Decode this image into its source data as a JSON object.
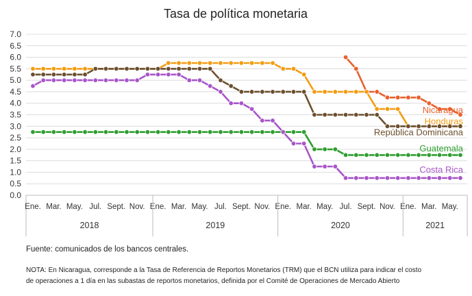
{
  "chart_data": {
    "type": "line",
    "title": "Tasa de política monetaria",
    "xlabel": "",
    "ylabel": "",
    "ylim": [
      0,
      7
    ],
    "y_ticks": [
      "0.0",
      "0.5",
      "1.0",
      "1.5",
      "2.0",
      "2.5",
      "3.0",
      "3.5",
      "4.0",
      "4.5",
      "5.0",
      "5.5",
      "6.0",
      "6.5",
      "7.0"
    ],
    "grid": true,
    "legend": "direct labels at line ends",
    "x_tick_labels": [
      "Ene.",
      "Mar.",
      "May.",
      "Jul.",
      "Sept.",
      "Nov.",
      "Ene.",
      "Mar.",
      "May.",
      "Jul.",
      "Sept.",
      "Nov.",
      "Ene.",
      "Mar.",
      "May.",
      "Jul.",
      "Sept.",
      "Nov.",
      "Ene.",
      "Mar.",
      "May."
    ],
    "x_tick_months": [
      0,
      2,
      4,
      6,
      8,
      10,
      12,
      14,
      16,
      18,
      20,
      22,
      24,
      26,
      28,
      30,
      32,
      34,
      36,
      38,
      40
    ],
    "years": [
      {
        "label": "2018",
        "start": 0,
        "end": 12
      },
      {
        "label": "2019",
        "start": 12,
        "end": 24
      },
      {
        "label": "2020",
        "start": 24,
        "end": 36
      },
      {
        "label": "2021",
        "start": 36,
        "end": 41
      }
    ],
    "x_unit": "months since Jan 2018",
    "series": [
      {
        "name": "Nicaragua",
        "color": "#E8602C",
        "x": [
          30,
          31,
          32,
          33,
          34,
          35,
          36,
          37,
          38,
          39,
          40,
          41
        ],
        "values": [
          6.0,
          5.5,
          4.5,
          4.5,
          4.25,
          4.25,
          4.25,
          4.25,
          4.0,
          3.75,
          3.75,
          3.5
        ]
      },
      {
        "name": "Honduras",
        "color": "#F39C12",
        "x": [
          0,
          1,
          2,
          3,
          4,
          5,
          6,
          7,
          8,
          9,
          10,
          11,
          12,
          13,
          14,
          15,
          16,
          17,
          18,
          19,
          20,
          21,
          22,
          23,
          24,
          25,
          26,
          27,
          28,
          29,
          30,
          31,
          32,
          33,
          34,
          35,
          36,
          37,
          38,
          39,
          40,
          41
        ],
        "values": [
          5.5,
          5.5,
          5.5,
          5.5,
          5.5,
          5.5,
          5.5,
          5.5,
          5.5,
          5.5,
          5.5,
          5.5,
          5.5,
          5.75,
          5.75,
          5.75,
          5.75,
          5.75,
          5.75,
          5.75,
          5.75,
          5.75,
          5.75,
          5.75,
          5.5,
          5.5,
          5.25,
          4.5,
          4.5,
          4.5,
          4.5,
          4.5,
          4.5,
          3.75,
          3.75,
          3.75,
          3.0,
          3.0,
          3.0,
          3.0,
          3.0,
          3.0
        ]
      },
      {
        "name": "República Dominicana",
        "color": "#6B4F2E",
        "x": [
          0,
          1,
          2,
          3,
          4,
          5,
          6,
          7,
          8,
          9,
          10,
          11,
          12,
          13,
          14,
          15,
          16,
          17,
          18,
          19,
          20,
          21,
          22,
          23,
          24,
          25,
          26,
          27,
          28,
          29,
          30,
          31,
          32,
          33,
          34,
          35,
          36,
          37,
          38,
          39,
          40,
          41
        ],
        "values": [
          5.25,
          5.25,
          5.25,
          5.25,
          5.25,
          5.25,
          5.5,
          5.5,
          5.5,
          5.5,
          5.5,
          5.5,
          5.5,
          5.5,
          5.5,
          5.5,
          5.5,
          5.5,
          5.0,
          4.75,
          4.5,
          4.5,
          4.5,
          4.5,
          4.5,
          4.5,
          4.5,
          3.5,
          3.5,
          3.5,
          3.5,
          3.5,
          3.5,
          3.5,
          3.0,
          3.0,
          3.0,
          3.0,
          3.0,
          3.0,
          3.0,
          3.0
        ]
      },
      {
        "name": "Guatemala",
        "color": "#2E9E2E",
        "x": [
          0,
          1,
          2,
          3,
          4,
          5,
          6,
          7,
          8,
          9,
          10,
          11,
          12,
          13,
          14,
          15,
          16,
          17,
          18,
          19,
          20,
          21,
          22,
          23,
          24,
          25,
          26,
          27,
          28,
          29,
          30,
          31,
          32,
          33,
          34,
          35,
          36,
          37,
          38,
          39,
          40,
          41
        ],
        "values": [
          2.75,
          2.75,
          2.75,
          2.75,
          2.75,
          2.75,
          2.75,
          2.75,
          2.75,
          2.75,
          2.75,
          2.75,
          2.75,
          2.75,
          2.75,
          2.75,
          2.75,
          2.75,
          2.75,
          2.75,
          2.75,
          2.75,
          2.75,
          2.75,
          2.75,
          2.75,
          2.75,
          2.0,
          2.0,
          2.0,
          1.75,
          1.75,
          1.75,
          1.75,
          1.75,
          1.75,
          1.75,
          1.75,
          1.75,
          1.75,
          1.75,
          1.75
        ]
      },
      {
        "name": "Costa Rica",
        "color": "#A855C9",
        "x": [
          0,
          1,
          2,
          3,
          4,
          5,
          6,
          7,
          8,
          9,
          10,
          11,
          12,
          13,
          14,
          15,
          16,
          17,
          18,
          19,
          20,
          21,
          22,
          23,
          24,
          25,
          26,
          27,
          28,
          29,
          30,
          31,
          32,
          33,
          34,
          35,
          36,
          37,
          38,
          39,
          40,
          41
        ],
        "values": [
          4.75,
          5.0,
          5.0,
          5.0,
          5.0,
          5.0,
          5.0,
          5.0,
          5.0,
          5.0,
          5.0,
          5.25,
          5.25,
          5.25,
          5.25,
          5.0,
          5.0,
          4.75,
          4.5,
          4.0,
          4.0,
          3.75,
          3.25,
          3.25,
          2.75,
          2.25,
          2.25,
          1.25,
          1.25,
          1.25,
          0.75,
          0.75,
          0.75,
          0.75,
          0.75,
          0.75,
          0.75,
          0.75,
          0.75,
          0.75,
          0.75,
          0.75
        ]
      }
    ]
  },
  "footer": {
    "source": "Fuente: comunicados de los bancos centrales.",
    "note_line1": "NOTA: En Nicaragua, corresponde a la Tasa de Referencia de Reportos Monetarios (TRM) que el BCN utiliza para indicar el costo",
    "note_line2": "de operaciones a 1 día en las subastas de reportos monetarios, definida por el Comité de Operaciones de Mercado Abierto"
  }
}
